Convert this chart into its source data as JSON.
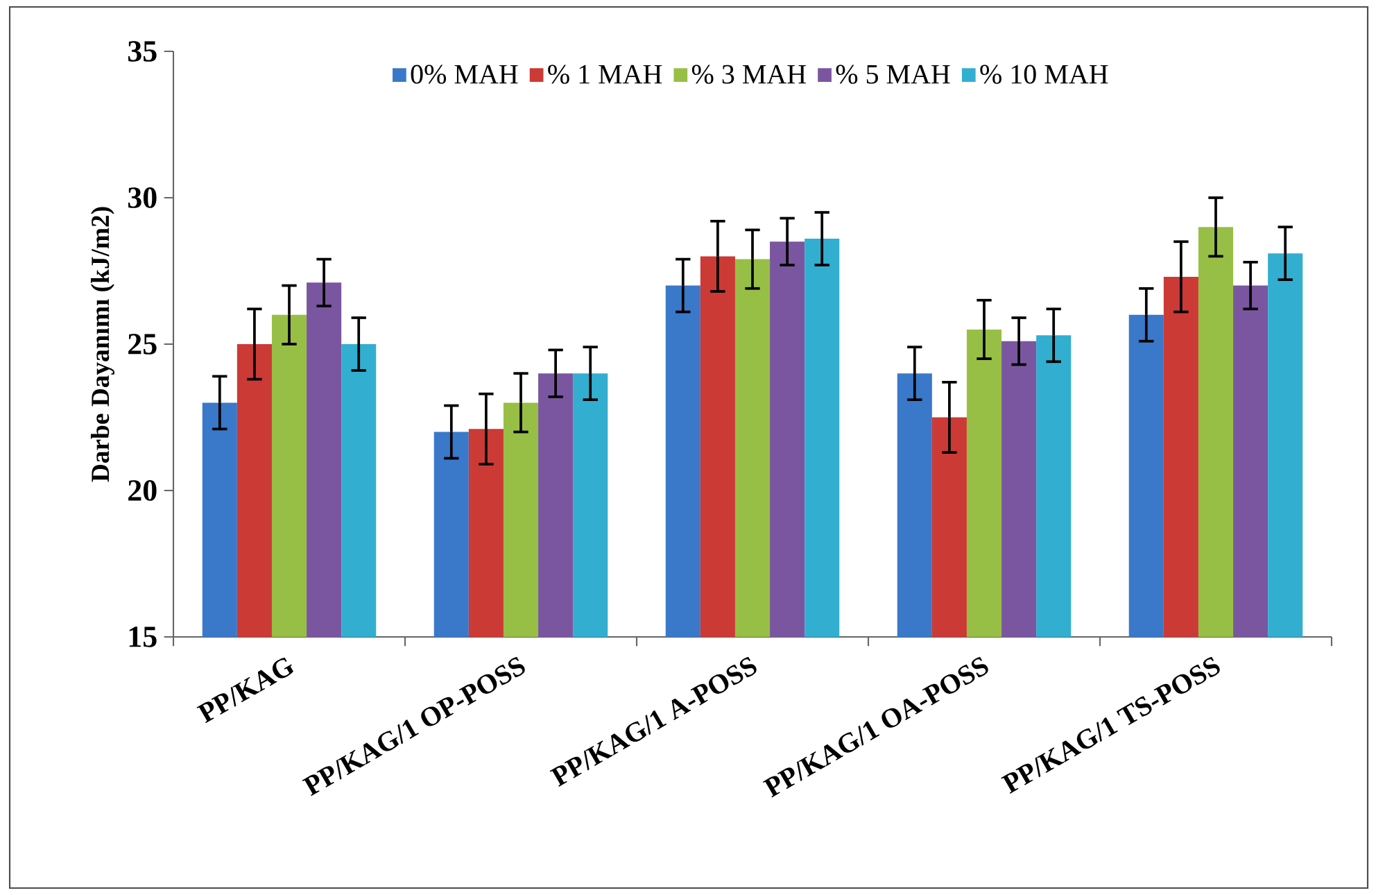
{
  "chart_data": {
    "type": "bar",
    "ylabel": "Darbe Dayanımı (kJ/m2)",
    "categories": [
      "PP/KAG",
      "PP/KAG/1 OP-POSS",
      "PP/KAG/1 A-POSS",
      "PP/KAG/1 OA-POSS",
      "PP/KAG/1 TS-POSS"
    ],
    "series": [
      {
        "name": "0% MAH",
        "color": "#3a78c9",
        "values": [
          23,
          22,
          27,
          24,
          26
        ],
        "errors": [
          0.9,
          0.9,
          0.9,
          0.9,
          0.9
        ]
      },
      {
        "name": "% 1 MAH",
        "color": "#cc3a36",
        "values": [
          25,
          22.1,
          28,
          22.5,
          27.3
        ],
        "errors": [
          1.2,
          1.2,
          1.2,
          1.2,
          1.2
        ]
      },
      {
        "name": "% 3 MAH",
        "color": "#98bf45",
        "values": [
          26,
          23,
          27.9,
          25.5,
          29
        ],
        "errors": [
          1.0,
          1.0,
          1.0,
          1.0,
          1.0
        ]
      },
      {
        "name": "% 5 MAH",
        "color": "#7a56a0",
        "values": [
          27.1,
          24,
          28.5,
          25.1,
          27
        ],
        "errors": [
          0.8,
          0.8,
          0.8,
          0.8,
          0.8
        ]
      },
      {
        "name": "% 10 MAH",
        "color": "#32aed0",
        "values": [
          25,
          24,
          28.6,
          25.3,
          28.1
        ],
        "errors": [
          0.9,
          0.9,
          0.9,
          0.9,
          0.9
        ]
      }
    ],
    "ylim": [
      15,
      35
    ],
    "yticks": [
      15,
      20,
      25,
      30,
      35
    ],
    "legend": "top",
    "grid": false
  }
}
